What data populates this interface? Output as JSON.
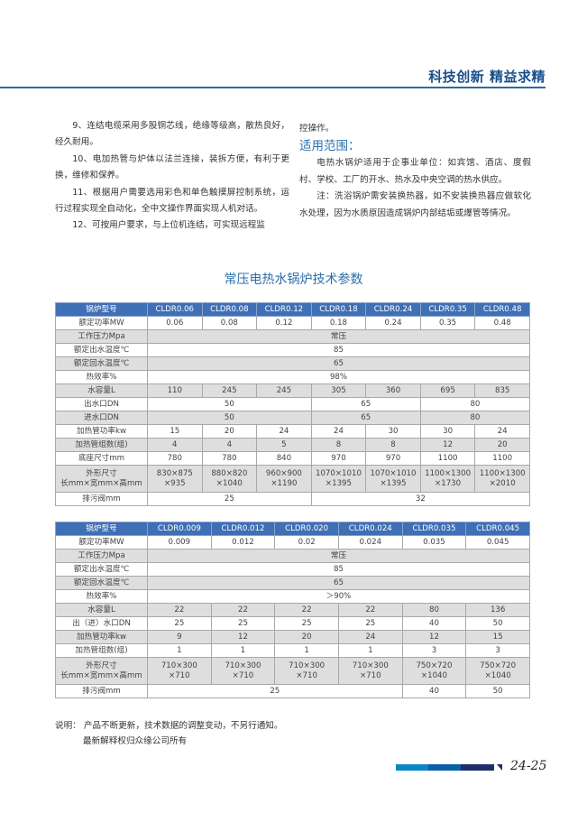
{
  "header": {
    "slogan": "科技创新  精益求精",
    "accent_color": "#2b6c9e"
  },
  "left_column": {
    "paragraphs": [
      "9、连结电缆采用多股铜芯线，绝缘等级高，散热良好，经久耐用。",
      "10、电加热管与炉体以法兰连接，装拆方便，有利于更换，维修和保养。",
      "11、根据用户需要选用彩色和单色触摸屏控制系统，运行过程实现全自动化，全中文操作界面实现人机对话。",
      "12、可按用户要求，与上位机连结，可实现远程监"
    ]
  },
  "right_column": {
    "continuation": "控操作。",
    "section_title": "适用范围：",
    "paragraphs": [
      "电热水锅炉适用于企事业单位：如宾馆、酒店、度假村、学校、工厂的开水、热水及中央空调的热水供应。",
      "注：洗浴锅炉需安装换热器，如不安装换热器应做软化水处理，因为水质原因造成锅炉内部结垢或爆管等情况。"
    ]
  },
  "table_title": "常压电热水锅炉技术参数",
  "table1": {
    "rows": [
      {
        "style": "hdr",
        "cells": [
          [
            "锅炉型号",
            1
          ],
          [
            "CLDR0.06",
            1
          ],
          [
            "CLDR0.08",
            1
          ],
          [
            "CLDR0.12",
            1
          ],
          [
            "CLDR0.18",
            1
          ],
          [
            "CLDR0.24",
            1
          ],
          [
            "CLDR0.35",
            1
          ],
          [
            "CLDR0.48",
            1
          ]
        ]
      },
      {
        "style": "w",
        "cells": [
          [
            "额定功率MW",
            1
          ],
          [
            "0.06",
            1
          ],
          [
            "0.08",
            1
          ],
          [
            "0.12",
            1
          ],
          [
            "0.18",
            1
          ],
          [
            "0.24",
            1
          ],
          [
            "0.35",
            1
          ],
          [
            "0.48",
            1
          ]
        ]
      },
      {
        "style": "g",
        "cells": [
          [
            "工作压力Mpa",
            1
          ],
          [
            "常压",
            7
          ]
        ]
      },
      {
        "style": "w",
        "cells": [
          [
            "额定出水温度℃",
            1
          ],
          [
            "85",
            7
          ]
        ]
      },
      {
        "style": "g",
        "cells": [
          [
            "额定回水温度℃",
            1
          ],
          [
            "65",
            7
          ]
        ]
      },
      {
        "style": "w",
        "cells": [
          [
            "热效率%",
            1
          ],
          [
            "98%",
            7
          ]
        ]
      },
      {
        "style": "g",
        "cells": [
          [
            "水容量L",
            1
          ],
          [
            "110",
            1
          ],
          [
            "245",
            1
          ],
          [
            "245",
            1
          ],
          [
            "305",
            1
          ],
          [
            "360",
            1
          ],
          [
            "695",
            1
          ],
          [
            "835",
            1
          ]
        ]
      },
      {
        "style": "w",
        "cells": [
          [
            "出水口DN",
            1
          ],
          [
            "50",
            3
          ],
          [
            "65",
            2
          ],
          [
            "80",
            2
          ]
        ]
      },
      {
        "style": "g",
        "cells": [
          [
            "进水口DN",
            1
          ],
          [
            "50",
            3
          ],
          [
            "65",
            2
          ],
          [
            "80",
            2
          ]
        ]
      },
      {
        "style": "w",
        "cells": [
          [
            "加热管功率kw",
            1
          ],
          [
            "15",
            1
          ],
          [
            "20",
            1
          ],
          [
            "24",
            1
          ],
          [
            "24",
            1
          ],
          [
            "30",
            1
          ],
          [
            "30",
            1
          ],
          [
            "24",
            1
          ]
        ]
      },
      {
        "style": "g",
        "cells": [
          [
            "加热管组数(组)",
            1
          ],
          [
            "4",
            1
          ],
          [
            "4",
            1
          ],
          [
            "5",
            1
          ],
          [
            "8",
            1
          ],
          [
            "8",
            1
          ],
          [
            "12",
            1
          ],
          [
            "20",
            1
          ]
        ]
      },
      {
        "style": "w",
        "cells": [
          [
            "底座尺寸mm",
            1
          ],
          [
            "780",
            1
          ],
          [
            "780",
            1
          ],
          [
            "840",
            1
          ],
          [
            "970",
            1
          ],
          [
            "970",
            1
          ],
          [
            "1100",
            1
          ],
          [
            "1100",
            1
          ]
        ]
      },
      {
        "style": "g tall",
        "cells": [
          [
            "外形尺寸\n长mm×宽mm×高mm",
            1
          ],
          [
            "830×875\n×935",
            1
          ],
          [
            "880×820\n×1040",
            1
          ],
          [
            "960×900\n×1190",
            1
          ],
          [
            "1070×1010\n×1395",
            1
          ],
          [
            "1070×1010\n×1395",
            1
          ],
          [
            "1100×1300\n×1730",
            1
          ],
          [
            "1100×1300\n×2010",
            1
          ]
        ]
      },
      {
        "style": "w",
        "cells": [
          [
            "排污阀mm",
            1
          ],
          [
            "25",
            3
          ],
          [
            "32",
            4
          ]
        ]
      }
    ]
  },
  "table2": {
    "rows": [
      {
        "style": "hdr",
        "cells": [
          [
            "锅炉型号",
            1
          ],
          [
            "CLDR0.009",
            1
          ],
          [
            "CLDR0.012",
            1
          ],
          [
            "CLDR0.020",
            1
          ],
          [
            "CLDR0.024",
            1
          ],
          [
            "CLDR0.035",
            1
          ],
          [
            "CLDR0.045",
            1
          ]
        ]
      },
      {
        "style": "w",
        "cells": [
          [
            "额定功率MW",
            1
          ],
          [
            "0.009",
            1
          ],
          [
            "0.012",
            1
          ],
          [
            "0.02",
            1
          ],
          [
            "0.024",
            1
          ],
          [
            "0.035",
            1
          ],
          [
            "0.045",
            1
          ]
        ]
      },
      {
        "style": "g",
        "cells": [
          [
            "工作压力Mpa",
            1
          ],
          [
            "常压",
            6
          ]
        ]
      },
      {
        "style": "w",
        "cells": [
          [
            "额定出水温度℃",
            1
          ],
          [
            "85",
            6
          ]
        ]
      },
      {
        "style": "g",
        "cells": [
          [
            "额定回水温度℃",
            1
          ],
          [
            "65",
            6
          ]
        ]
      },
      {
        "style": "w",
        "cells": [
          [
            "热效率%",
            1
          ],
          [
            "＞90%",
            6
          ]
        ]
      },
      {
        "style": "g",
        "cells": [
          [
            "水容量L",
            1
          ],
          [
            "22",
            1
          ],
          [
            "22",
            1
          ],
          [
            "22",
            1
          ],
          [
            "22",
            1
          ],
          [
            "80",
            1
          ],
          [
            "136",
            1
          ]
        ]
      },
      {
        "style": "w",
        "cells": [
          [
            "出（进）水口DN",
            1
          ],
          [
            "25",
            1
          ],
          [
            "25",
            1
          ],
          [
            "25",
            1
          ],
          [
            "25",
            1
          ],
          [
            "40",
            1
          ],
          [
            "50",
            1
          ]
        ]
      },
      {
        "style": "g",
        "cells": [
          [
            "加热管功率kw",
            1
          ],
          [
            "9",
            1
          ],
          [
            "12",
            1
          ],
          [
            "20",
            1
          ],
          [
            "24",
            1
          ],
          [
            "12",
            1
          ],
          [
            "15",
            1
          ]
        ]
      },
      {
        "style": "w",
        "cells": [
          [
            "加热管组数(组)",
            1
          ],
          [
            "1",
            1
          ],
          [
            "1",
            1
          ],
          [
            "1",
            1
          ],
          [
            "1",
            1
          ],
          [
            "3",
            1
          ],
          [
            "3",
            1
          ]
        ]
      },
      {
        "style": "g tall",
        "cells": [
          [
            "外形尺寸\n长mm×宽mm×高mm",
            1
          ],
          [
            "710×300\n×710",
            1
          ],
          [
            "710×300\n×710",
            1
          ],
          [
            "710×300\n×710",
            1
          ],
          [
            "710×300\n×710",
            1
          ],
          [
            "750×720\n×1040",
            1
          ],
          [
            "750×720\n×1040",
            1
          ]
        ]
      },
      {
        "style": "w",
        "cells": [
          [
            "排污阀mm",
            1
          ],
          [
            "25",
            4
          ],
          [
            "40",
            1
          ],
          [
            "50",
            1
          ]
        ]
      }
    ]
  },
  "note": {
    "line1": "说明：  产品不断更新，技术数据的调整变动，不另行通知。",
    "line2": "最新解释权归众缘公司所有"
  },
  "footer": {
    "page_numbers": "24-25",
    "bar_colors": [
      "#0a86c8",
      "#0a5fa8",
      "#1f2f6a"
    ]
  }
}
